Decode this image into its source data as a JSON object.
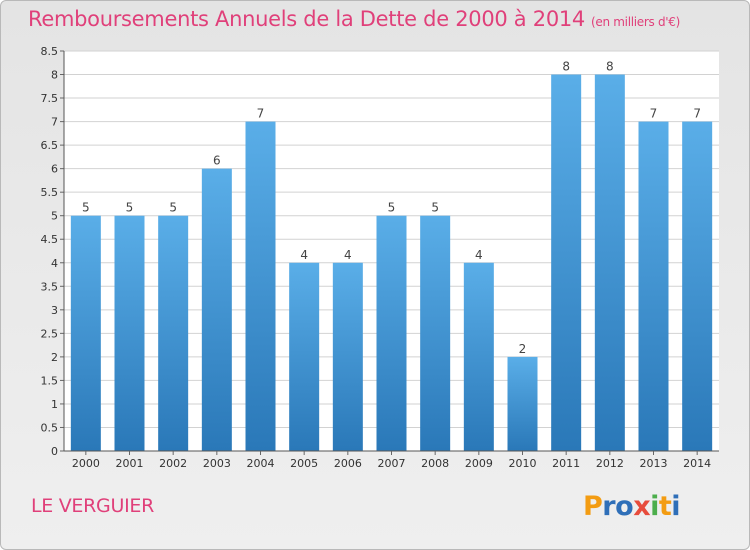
{
  "header": {
    "title": "Remboursements Annuels de la Dette de 2000 à 2014",
    "unit": "(en milliers d'€)"
  },
  "footer": {
    "place": "LE VERGUIER",
    "logo_letters": [
      "P",
      "r",
      "o",
      "x",
      "i",
      "t",
      "i"
    ],
    "logo_colors": [
      "#f39c12",
      "#2f6fb8",
      "#2f6fb8",
      "#e74c3c",
      "#4cae4c",
      "#f39c12",
      "#2f6fb8"
    ]
  },
  "colors": {
    "bar_light": "#5aaee8",
    "bar_dark": "#2a78b8",
    "title": "#e0407a",
    "grid": "#d2d2d2"
  },
  "chart_data": {
    "type": "bar",
    "title": "Remboursements Annuels de la Dette de 2000 à 2014",
    "xlabel": "",
    "ylabel": "",
    "categories": [
      "2000",
      "2001",
      "2002",
      "2003",
      "2004",
      "2005",
      "2006",
      "2007",
      "2008",
      "2009",
      "2010",
      "2011",
      "2012",
      "2013",
      "2014"
    ],
    "values": [
      5,
      5,
      5,
      6,
      7,
      4,
      4,
      5,
      5,
      4,
      2,
      8,
      8,
      7,
      7
    ],
    "data_labels": [
      "5",
      "5",
      "5",
      "6",
      "7",
      "4",
      "4",
      "5",
      "5",
      "4",
      "2",
      "8",
      "8",
      "7",
      "7"
    ],
    "ylim": [
      0,
      8.5
    ],
    "yticks": [
      0,
      0.5,
      1,
      1.5,
      2,
      2.5,
      3,
      3.5,
      4,
      4.5,
      5,
      5.5,
      6,
      6.5,
      7,
      7.5,
      8,
      8.5
    ],
    "ytick_labels": [
      "0",
      "0.5",
      "1",
      "1.5",
      "2",
      "2.5",
      "3",
      "3.5",
      "4",
      "4.5",
      "5",
      "5.5",
      "6",
      "6.5",
      "7",
      "7.5",
      "8",
      "8.5"
    ],
    "grid": true,
    "legend": "none"
  }
}
